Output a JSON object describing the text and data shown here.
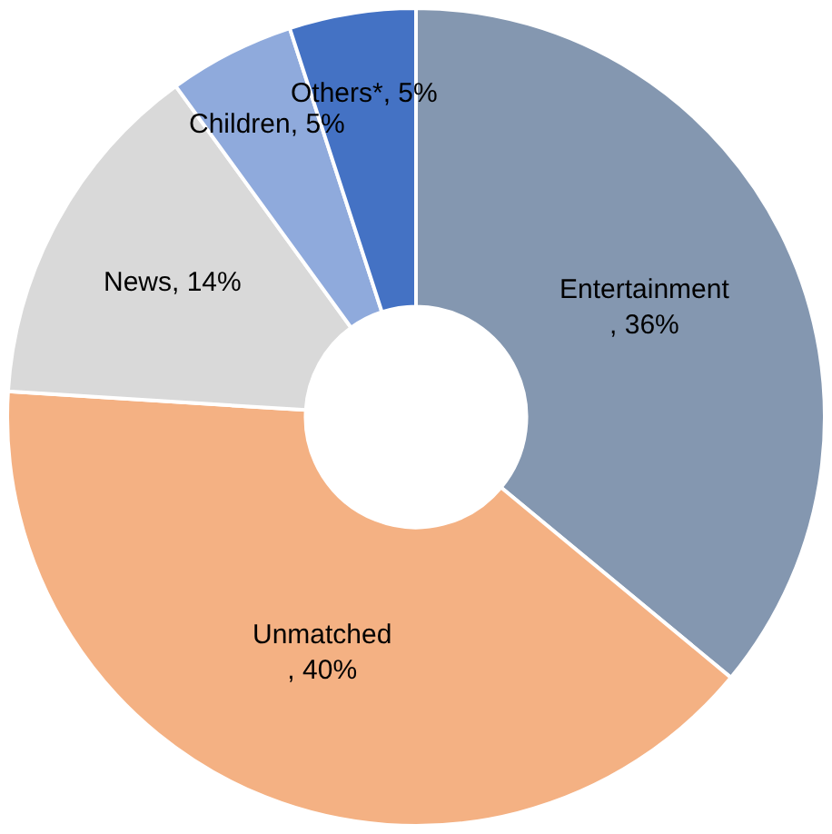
{
  "chart_data": {
    "type": "donut",
    "categories": [
      "Entertainment",
      "Unmatched",
      "News",
      "Children",
      "Others*"
    ],
    "values": [
      36,
      40,
      14,
      5,
      5
    ],
    "value_labels": [
      ", 36%",
      ", 40%",
      ", 14%",
      ", 5%",
      ", 5%"
    ],
    "colors": [
      "#8497b0",
      "#f4b183",
      "#d9d9d9",
      "#8faadc",
      "#4472c4"
    ],
    "legend": false
  }
}
